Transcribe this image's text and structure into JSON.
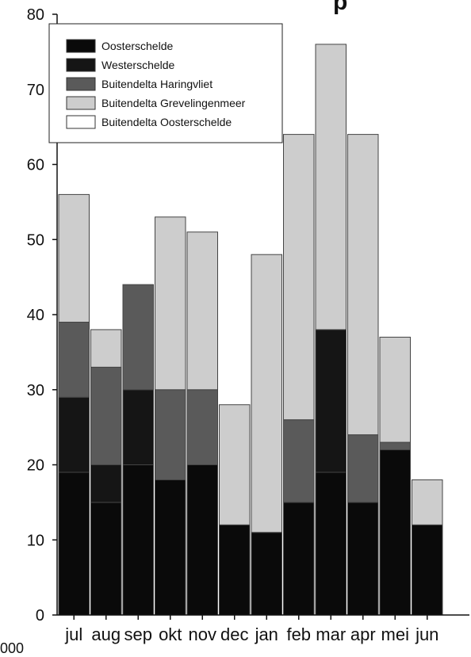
{
  "cropped_text": {
    "top_right": "p",
    "bottom_left": "000"
  },
  "chart_data": {
    "type": "bar",
    "stacked": true,
    "categories": [
      "jul",
      "aug",
      "sep",
      "okt",
      "nov",
      "dec",
      "jan",
      "feb",
      "mar",
      "apr",
      "mei",
      "jun"
    ],
    "ylim": [
      0,
      80
    ],
    "yticks": [
      0,
      10,
      20,
      30,
      40,
      50,
      60,
      70,
      80
    ],
    "grid": false,
    "legend_position": "top-left",
    "series": [
      {
        "name": "Oosterschelde",
        "color": "#0a0a0a",
        "values": [
          19,
          15,
          20,
          18,
          20,
          12,
          11,
          15,
          19,
          15,
          22,
          12
        ]
      },
      {
        "name": "Westerschelde",
        "color": "#151515",
        "values": [
          10,
          5,
          10,
          0,
          0,
          0,
          0,
          0,
          19,
          0,
          0,
          0
        ]
      },
      {
        "name": "Buitendelta Haringvliet",
        "color": "#5a5a5a",
        "values": [
          10,
          13,
          14,
          12,
          10,
          0,
          0,
          11,
          0,
          9,
          1,
          0
        ]
      },
      {
        "name": "Buitendelta Grevelingenmeer",
        "color": "#cdcdcd",
        "values": [
          17,
          5,
          0,
          23,
          21,
          16,
          37,
          38,
          38,
          40,
          14,
          6
        ]
      },
      {
        "name": "Buitendelta Oosterschelde",
        "color": "#ffffff",
        "values": [
          0,
          0,
          0,
          0,
          0,
          0,
          0,
          0,
          0,
          0,
          0,
          0
        ]
      }
    ]
  }
}
